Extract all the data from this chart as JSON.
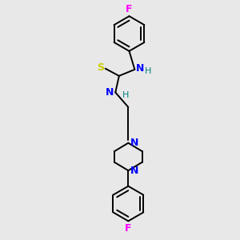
{
  "bg_color": "#e8e8e8",
  "bond_color": "#000000",
  "N_color": "#0000ff",
  "S_color": "#cccc00",
  "F_color": "#ff00ff",
  "H_color": "#008080",
  "lw": 1.4,
  "ring_r": 0.95,
  "xlim": [
    0,
    8
  ],
  "ylim": [
    0,
    13
  ]
}
